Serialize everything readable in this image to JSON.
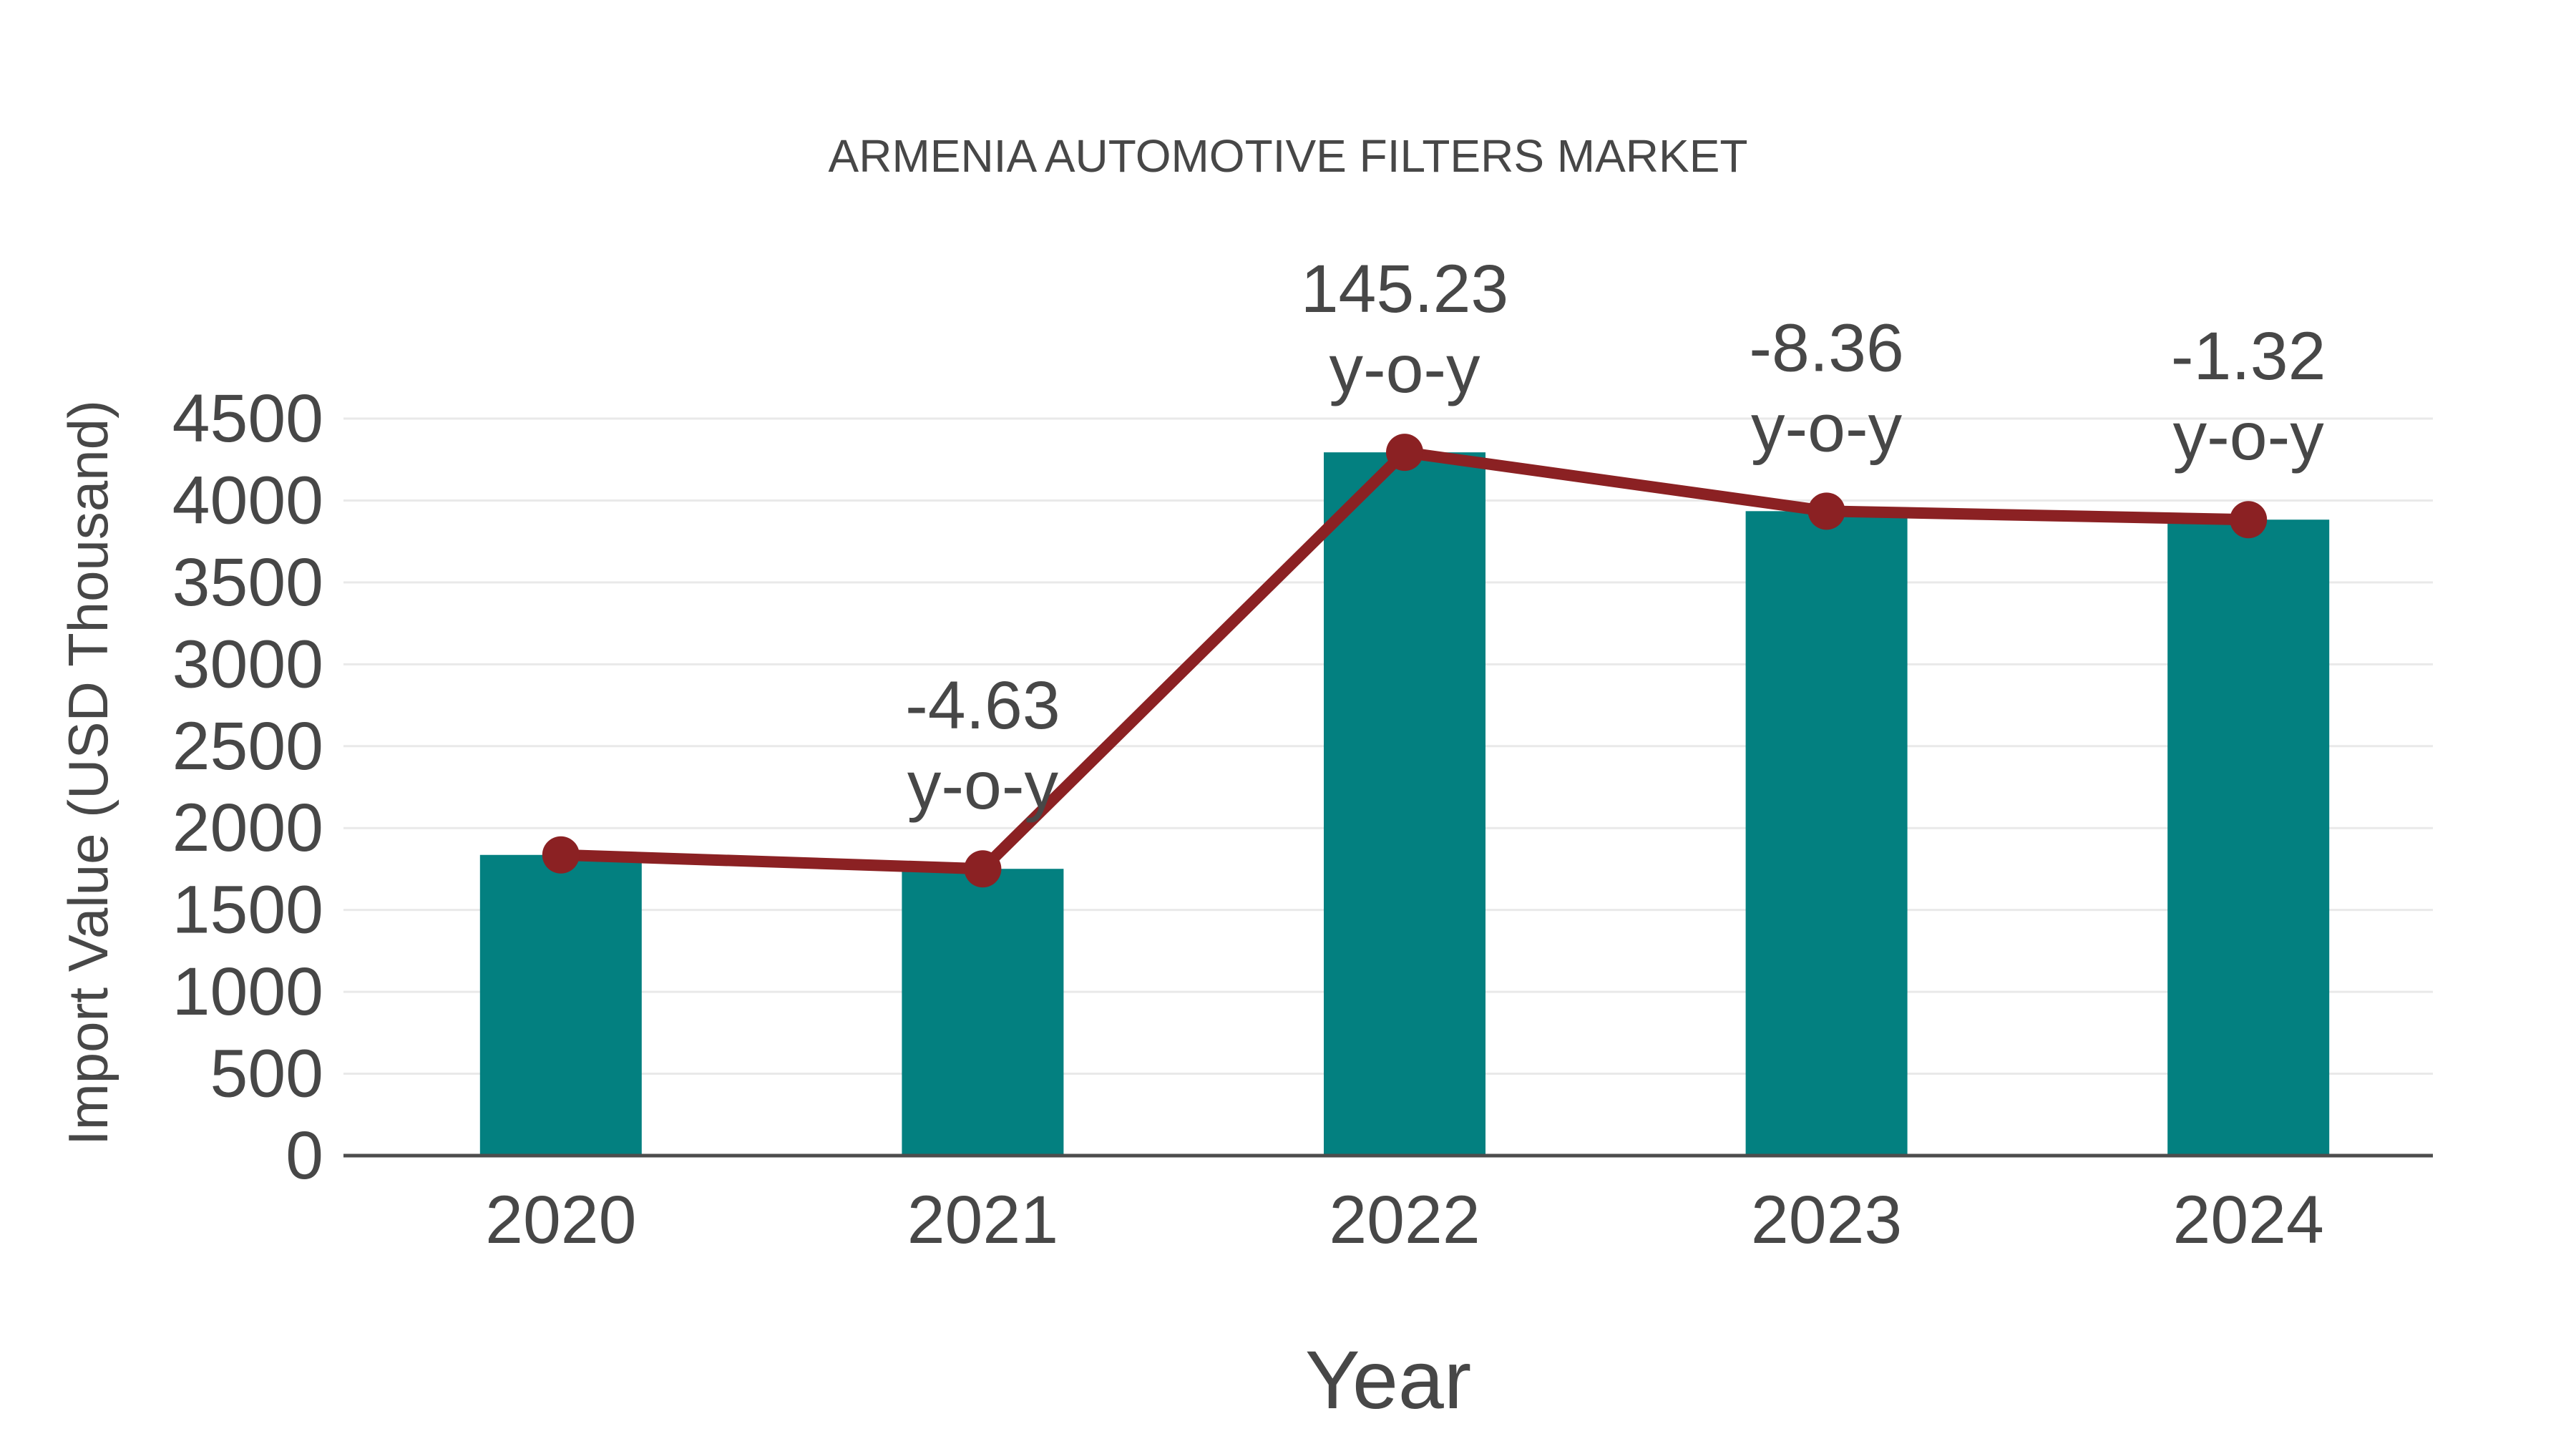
{
  "title": "ARMENIA AUTOMOTIVE FILTERS MARKET",
  "chart_data": {
    "type": "bar",
    "title": "ARMENIA AUTOMOTIVE FILTERS MARKET",
    "xlabel": "Year",
    "ylabel": "Import Value (USD Thousand)",
    "categories": [
      "2020",
      "2021",
      "2022",
      "2023",
      "2024"
    ],
    "series": [
      {
        "name": "import-value-bars",
        "type": "bar",
        "values": [
          1836,
          1751,
          4294,
          3935,
          3883
        ]
      },
      {
        "name": "import-value-trend-line",
        "type": "line",
        "values": [
          1836,
          1751,
          4294,
          3935,
          3883
        ]
      }
    ],
    "annotations": [
      {
        "category": "2021",
        "value_label": "-4.63",
        "suffix_label": "y-o-y"
      },
      {
        "category": "2022",
        "value_label": "145.23",
        "suffix_label": "y-o-y"
      },
      {
        "category": "2023",
        "value_label": "-8.36",
        "suffix_label": "y-o-y"
      },
      {
        "category": "2024",
        "value_label": "-1.32",
        "suffix_label": "y-o-y"
      }
    ],
    "ylim": [
      0,
      4500
    ],
    "yticks": [
      0,
      500,
      1000,
      1500,
      2000,
      2500,
      3000,
      3500,
      4000,
      4500
    ],
    "grid": true,
    "legend": "none",
    "colors": {
      "bar": "#038080",
      "line": "#8B2123",
      "marker": "#8B2123",
      "text": "#474747",
      "gridline": "#E9E9E9",
      "axis_line": "#4D4D4D",
      "background": "#FFFFFF"
    }
  }
}
